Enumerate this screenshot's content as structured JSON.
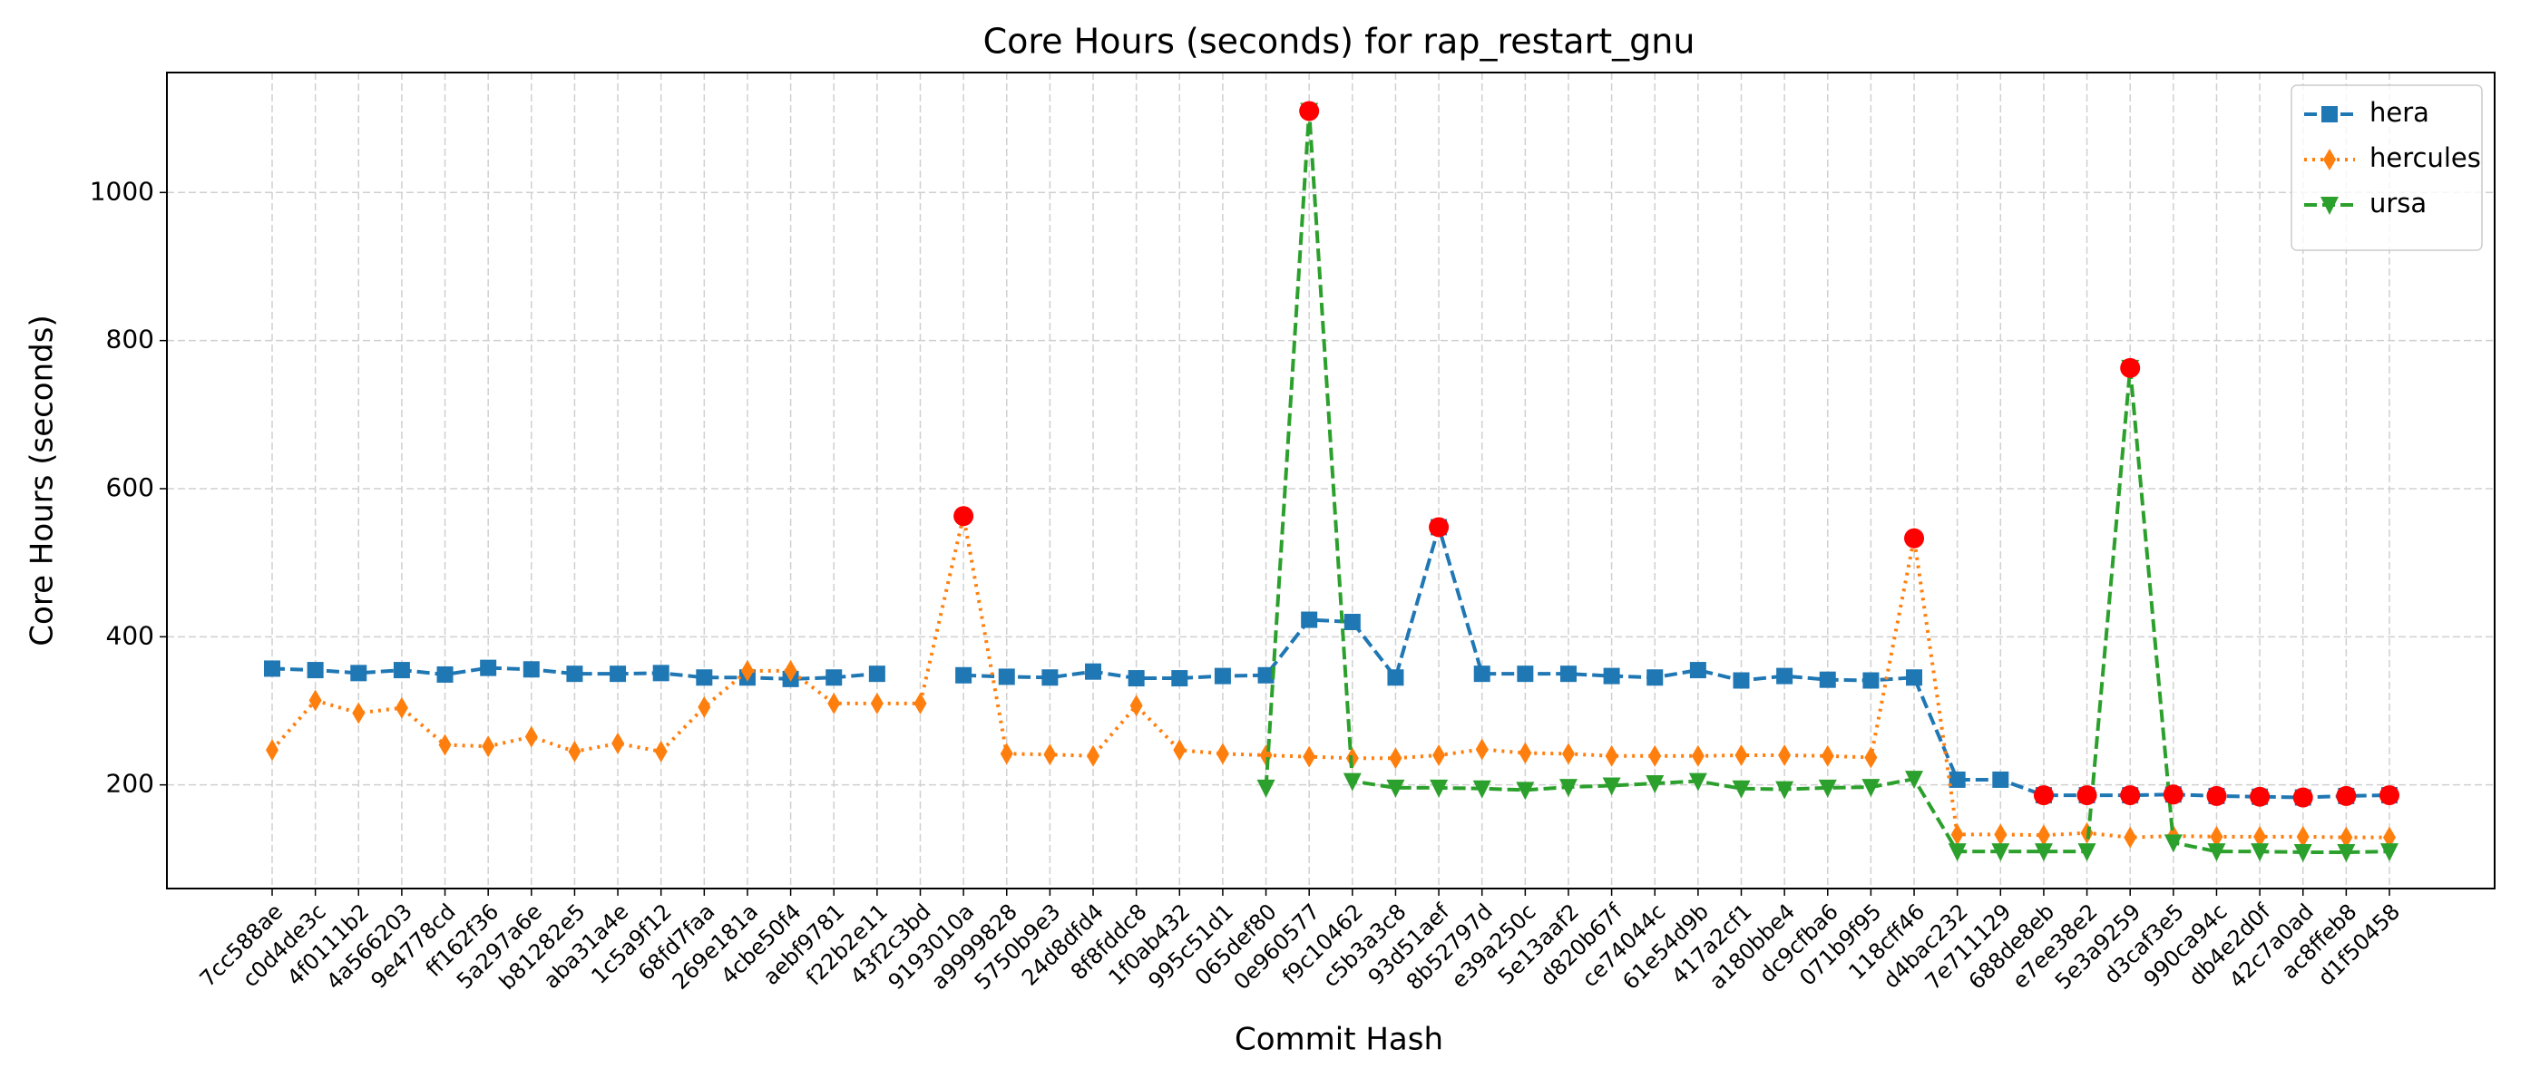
{
  "chart_data": {
    "type": "line",
    "title": "Core Hours (seconds) for rap_restart_gnu",
    "x_label": "Commit Hash",
    "y_label": "Core Hours (seconds)",
    "categories": [
      "7cc588ae",
      "c0d4de3c",
      "4f0111b2",
      "4a566203",
      "9e4778cd",
      "ff162f36",
      "5a297a6e",
      "b81282e5",
      "aba31a4e",
      "1c5a9f12",
      "68fd7faa",
      "269e181a",
      "4cbe50f4",
      "aebf9781",
      "f22b2e11",
      "43f2c3bd",
      "9193010a",
      "a9999828",
      "5750b9e3",
      "24d8dfd4",
      "8f8fddc8",
      "1f0ab432",
      "995c51d1",
      "065def80",
      "0e960577",
      "f9c10462",
      "c5b3a3c8",
      "93d51aef",
      "8b52797d",
      "e39a250c",
      "5e13aaf2",
      "d820b67f",
      "ce74044c",
      "61e54d9b",
      "417a2cf1",
      "a180bbe4",
      "dc9cfba6",
      "071b9f95",
      "118cff46",
      "d4bac232",
      "7e711129",
      "688de8eb",
      "e7ee38e2",
      "5e3a9259",
      "d3caf3e5",
      "990ca94c",
      "db4e2d0f",
      "42c7a0ad",
      "ac8ffeb8",
      "d1f50458"
    ],
    "series": [
      {
        "name": "hera",
        "color": "#1f77b4",
        "marker": "square",
        "linestyle": "dashed",
        "values": [
          357,
          355,
          351,
          355,
          349,
          358,
          356,
          350,
          350,
          351,
          345,
          345,
          343,
          345,
          350,
          null,
          348,
          346,
          345,
          353,
          344,
          344,
          347,
          348,
          423,
          420,
          345,
          548,
          350,
          350,
          350,
          347,
          345,
          355,
          341,
          347,
          342,
          341,
          345,
          207,
          207,
          186,
          186,
          186,
          187,
          185,
          184,
          183,
          185,
          186
        ],
        "highlight": [
          27,
          41,
          42,
          43,
          44,
          45,
          46,
          47,
          48,
          49
        ]
      },
      {
        "name": "hercules",
        "color": "#ff7f0e",
        "marker": "thin-diamond",
        "linestyle": "dotted",
        "values": [
          247,
          314,
          297,
          304,
          254,
          252,
          265,
          245,
          256,
          245,
          305,
          354,
          354,
          310,
          310,
          310,
          563,
          242,
          241,
          239,
          307,
          247,
          242,
          240,
          238,
          236,
          236,
          240,
          248,
          243,
          242,
          239,
          239,
          239,
          240,
          240,
          239,
          237,
          533,
          133,
          133,
          132,
          135,
          129,
          131,
          130,
          130,
          130,
          129,
          129
        ],
        "highlight": [
          16,
          38
        ]
      },
      {
        "name": "ursa",
        "color": "#2ca02c",
        "marker": "triangle-down",
        "linestyle": "dashed",
        "values": [
          null,
          null,
          null,
          null,
          null,
          null,
          null,
          null,
          null,
          null,
          null,
          null,
          null,
          null,
          null,
          null,
          null,
          null,
          null,
          null,
          null,
          null,
          null,
          196,
          1110,
          205,
          196,
          196,
          195,
          193,
          197,
          199,
          202,
          205,
          195,
          194,
          196,
          197,
          208,
          110,
          110,
          110,
          110,
          763,
          122,
          110,
          110,
          109,
          109,
          110
        ],
        "highlight": [
          24,
          43
        ]
      }
    ],
    "highlight_color": "#ff0000",
    "ylim": [
      60,
      1162
    ],
    "yticks": [
      200,
      400,
      600,
      800,
      1000
    ],
    "grid": true,
    "legend": "upper right"
  }
}
